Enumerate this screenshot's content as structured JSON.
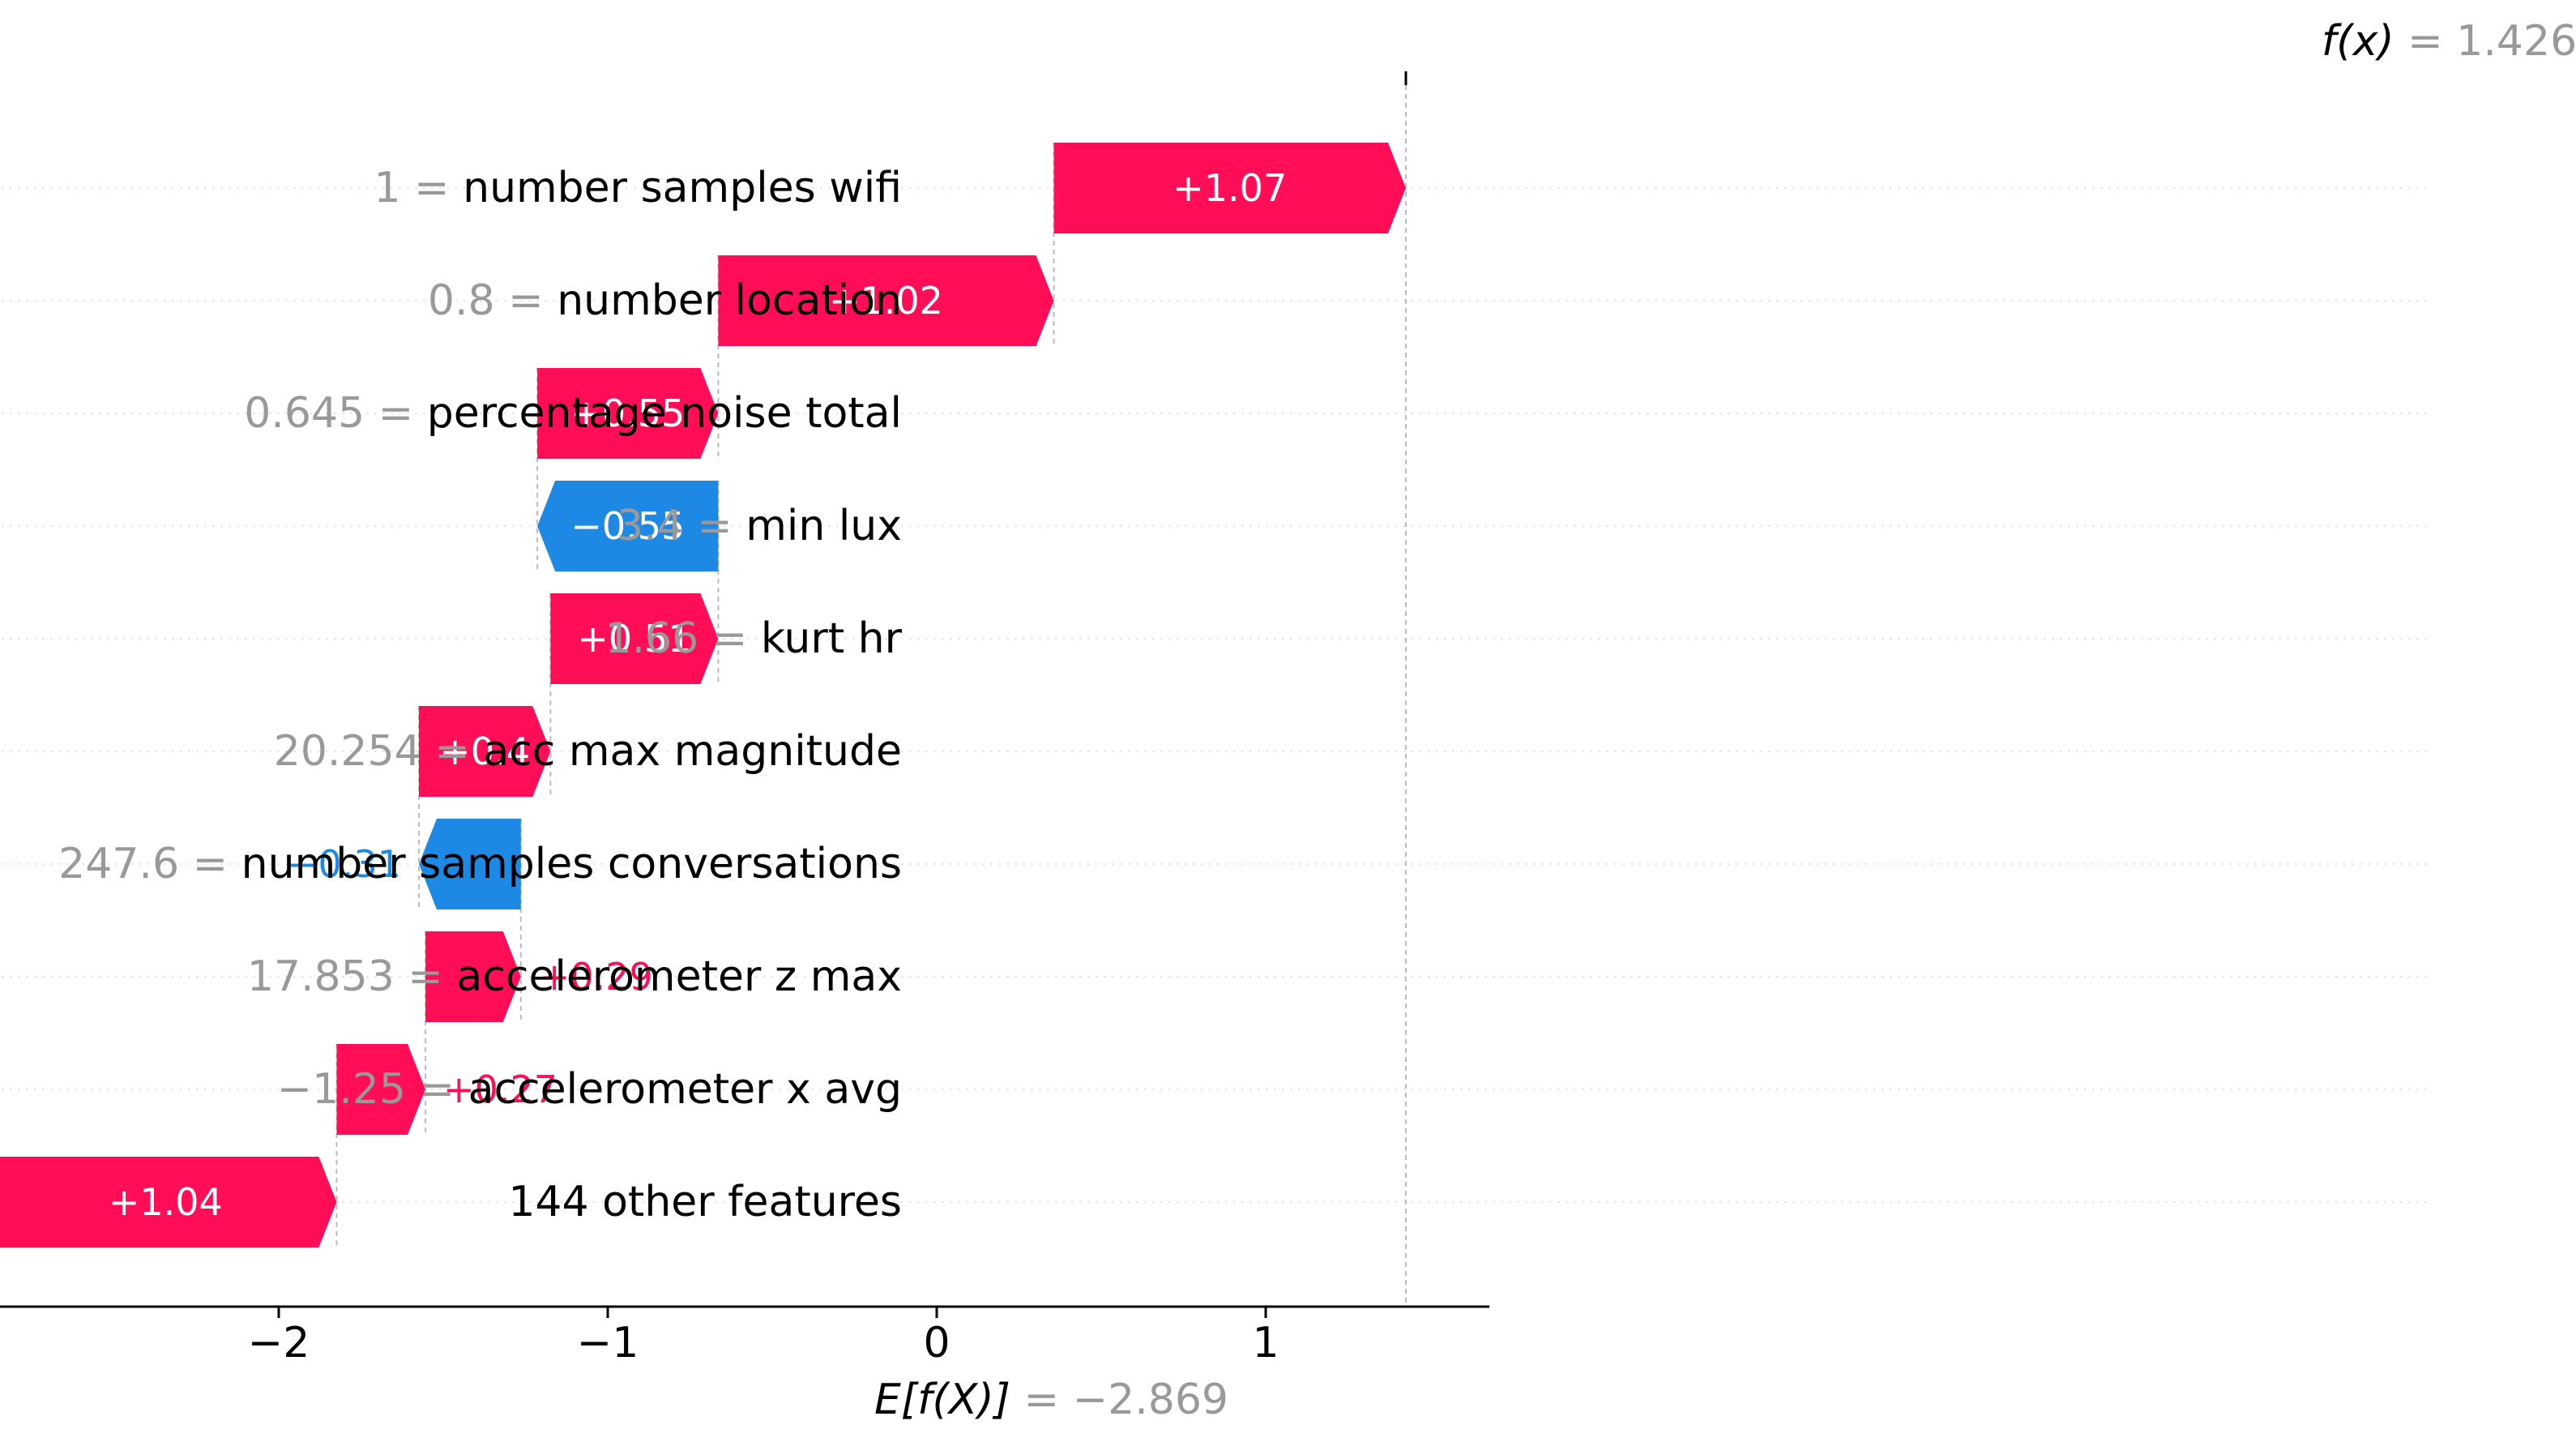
{
  "chart_data": {
    "type": "waterfall",
    "title": "",
    "xlabel": "",
    "ylabel": "",
    "base_value": -2.869,
    "base_value_text": "−2.869",
    "base_value_label": "E[f(X)]",
    "output_value": 1.426,
    "output_value_text": "1.426",
    "output_value_label": "f(x)",
    "xlim": [
      -2.94,
      1.68
    ],
    "xticks": [
      -2,
      -1,
      0,
      1
    ],
    "xtick_labels": [
      "−2",
      "−1",
      "0",
      "1"
    ],
    "features": [
      {
        "value": "1",
        "name": "number samples wifi",
        "shap": 1.07,
        "label": "+1.07"
      },
      {
        "value": "0.8",
        "name": "number location",
        "shap": 1.02,
        "label": "+1.02"
      },
      {
        "value": "0.645",
        "name": "percentage noise total",
        "shap": 0.55,
        "label": "+0.55"
      },
      {
        "value": "3.4",
        "name": "min lux",
        "shap": -0.55,
        "label": "−0.55"
      },
      {
        "value": "1.66",
        "name": "kurt hr",
        "shap": 0.51,
        "label": "+0.51"
      },
      {
        "value": "20.254",
        "name": "acc max magnitude",
        "shap": 0.4,
        "label": "+0.4"
      },
      {
        "value": "247.6",
        "name": "number samples conversations",
        "shap": -0.31,
        "label": "−0.31"
      },
      {
        "value": "17.853",
        "name": "accelerometer z max",
        "shap": 0.29,
        "label": "+0.29"
      },
      {
        "value": "−1.25",
        "name": "accelerometer x avg",
        "shap": 0.27,
        "label": "+0.27"
      },
      {
        "value": "",
        "name": "144 other features",
        "shap": 1.04,
        "label": "+1.04"
      }
    ],
    "colors": {
      "positive": "#ff0d57",
      "negative": "#1e88e5",
      "value_text": "#999999",
      "axis": "#000000",
      "gridline": "#dddddd",
      "reference_line": "#bbbbbb"
    }
  }
}
